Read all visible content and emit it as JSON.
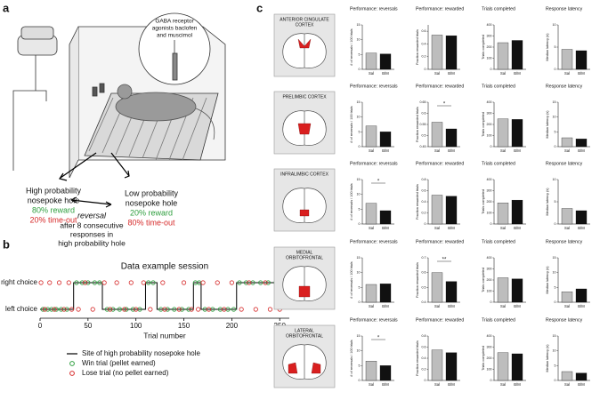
{
  "panel_a": {
    "letter": "a",
    "inset_label": [
      "GABA receptor",
      "agonists baclofen",
      "and muscimol"
    ],
    "high": {
      "label": [
        "High probability",
        "nosepoke hole"
      ],
      "reward": "80% reward",
      "timeout": "20% time-out"
    },
    "low": {
      "label": [
        "Low probability",
        "nosepoke hole"
      ],
      "reward": "20% reward",
      "timeout": "80% time-out"
    },
    "reversal": "reversal",
    "reversal_note": [
      "after 8 consecutive",
      "responses in",
      "high probability hole"
    ]
  },
  "panel_b": {
    "letter": "b",
    "type": "session",
    "title": "Data example session",
    "xlabel": "Trial number",
    "sides": [
      "left choice",
      "right choice"
    ],
    "xlim": [
      0,
      260
    ],
    "xticks": [
      0,
      50,
      100,
      150,
      200,
      250
    ],
    "blocks": [
      {
        "start": 0,
        "end": 35,
        "side": 0
      },
      {
        "start": 35,
        "end": 65,
        "side": 1
      },
      {
        "start": 65,
        "end": 110,
        "side": 0
      },
      {
        "start": 110,
        "end": 122,
        "side": 1
      },
      {
        "start": 122,
        "end": 160,
        "side": 0
      },
      {
        "start": 160,
        "end": 168,
        "side": 1
      },
      {
        "start": 168,
        "end": 205,
        "side": 0
      },
      {
        "start": 205,
        "end": 255,
        "side": 1
      }
    ],
    "win": {
      "left": [
        3,
        8,
        12,
        17,
        22,
        28,
        70,
        76,
        83,
        90,
        97,
        104,
        126,
        133,
        140,
        148,
        155,
        172,
        180,
        188,
        196,
        202
      ],
      "right": [
        38,
        44,
        50,
        57,
        62,
        113,
        118,
        162,
        166,
        208,
        215,
        222,
        230,
        238,
        246,
        252
      ]
    },
    "lose": {
      "left": [
        5,
        15,
        25,
        33,
        40,
        55,
        73,
        88,
        100,
        115,
        130,
        145,
        158,
        165,
        176,
        192,
        210,
        225,
        240,
        250
      ],
      "right": [
        1,
        10,
        20,
        30,
        47,
        67,
        80,
        95,
        108,
        128,
        150,
        170,
        185,
        200,
        218,
        235,
        248
      ]
    },
    "legend": [
      {
        "name": "Site of high probability nosepoke hole",
        "color": "#000000",
        "kind": "line"
      },
      {
        "name": "Win trial (pellet earned)",
        "color": "#2e9e3e",
        "kind": "circle"
      },
      {
        "name": "Lose trial (no pellet earned)",
        "color": "#d62a2a",
        "kind": "circle"
      }
    ]
  },
  "panel_c": {
    "letter": "c",
    "bar_colors": [
      "#bdbdbd",
      "#111111"
    ],
    "regions": [
      {
        "name": [
          "ANTERIOR CINGULATE",
          "CORTEX"
        ],
        "charts": [
          {
            "type": "bar",
            "title": "Performance: reversals",
            "ylabel": "# of reversals / 100 trials",
            "categories": [
              "Sal",
              "B/M"
            ],
            "values": [
              5.5,
              5.2
            ],
            "ylim": [
              0,
              15
            ],
            "yticks": [
              0,
              5,
              10,
              15
            ]
          },
          {
            "type": "bar",
            "title": "Performance: rewarded",
            "ylabel": "Fraction rewarded trials",
            "categories": [
              "Sal",
              "B/M"
            ],
            "values": [
              0.54,
              0.53
            ],
            "ylim": [
              0,
              0.7
            ],
            "yticks": [
              0,
              0.2,
              0.4,
              0.6
            ]
          },
          {
            "type": "bar",
            "title": "Trials completed",
            "ylabel": "Trials completed",
            "categories": [
              "Sal",
              "B/M"
            ],
            "values": [
              240,
              260
            ],
            "ylim": [
              0,
              400
            ],
            "yticks": [
              0,
              100,
              200,
              300,
              400
            ]
          },
          {
            "type": "bar",
            "title": "Response latency",
            "ylabel": "Median latency (s)",
            "categories": [
              "Sal",
              "B/M"
            ],
            "values": [
              4.5,
              4.2
            ],
            "ylim": [
              0,
              10
            ],
            "yticks": [
              0,
              5,
              10
            ]
          }
        ]
      },
      {
        "name": [
          "PRELIMBIC CORTEX"
        ],
        "charts": [
          {
            "type": "bar",
            "title": "Performance: reversals",
            "ylabel": "# of reversals / 100 trials",
            "categories": [
              "Sal",
              "B/M"
            ],
            "values": [
              7,
              5
            ],
            "ylim": [
              0,
              15
            ],
            "yticks": [
              0,
              5,
              10,
              15
            ]
          },
          {
            "type": "bar",
            "title": "Performance: rewarded",
            "ylabel": "Fraction rewarded trials",
            "categories": [
              "Sal",
              "B/M"
            ],
            "values": [
              0.56,
              0.53
            ],
            "ylim": [
              0.45,
              0.65
            ],
            "yticks": [
              0.45,
              0.5,
              0.55,
              0.6,
              0.65
            ],
            "annotation": "*"
          },
          {
            "type": "bar",
            "title": "Trials completed",
            "ylabel": "Trials completed",
            "categories": [
              "Sal",
              "B/M"
            ],
            "values": [
              250,
              245
            ],
            "ylim": [
              0,
              400
            ],
            "yticks": [
              0,
              100,
              200,
              300,
              400
            ]
          },
          {
            "type": "bar",
            "title": "Response latency",
            "ylabel": "Median latency (s)",
            "categories": [
              "Sal",
              "B/M"
            ],
            "values": [
              3,
              2.6
            ],
            "ylim": [
              0,
              15
            ],
            "yticks": [
              0,
              5,
              10,
              15
            ]
          }
        ]
      },
      {
        "name": [
          "INFRALIMBIC CORTEX"
        ],
        "charts": [
          {
            "type": "bar",
            "title": "Performance: reversals",
            "ylabel": "# of reversals / 100 trials",
            "categories": [
              "Sal",
              "B/M"
            ],
            "values": [
              7,
              4.5
            ],
            "ylim": [
              0,
              15
            ],
            "yticks": [
              0,
              5,
              10,
              15
            ],
            "annotation": "*"
          },
          {
            "type": "bar",
            "title": "Performance: rewarded",
            "ylabel": "Fraction rewarded trials",
            "categories": [
              "Sal",
              "B/M"
            ],
            "values": [
              0.52,
              0.5
            ],
            "ylim": [
              0,
              0.8
            ],
            "yticks": [
              0,
              0.2,
              0.4,
              0.6,
              0.8
            ]
          },
          {
            "type": "bar",
            "title": "Trials completed",
            "ylabel": "Trials completed",
            "categories": [
              "Sal",
              "B/M"
            ],
            "values": [
              190,
              215
            ],
            "ylim": [
              0,
              400
            ],
            "yticks": [
              0,
              100,
              200,
              300,
              400
            ]
          },
          {
            "type": "bar",
            "title": "Response latency",
            "ylabel": "Median latency (s)",
            "categories": [
              "Sal",
              "B/M"
            ],
            "values": [
              3.5,
              3
            ],
            "ylim": [
              0,
              10
            ],
            "yticks": [
              0,
              5,
              10
            ]
          }
        ]
      },
      {
        "name": [
          "MEDIAL",
          "ORBITOFRONTAL"
        ],
        "charts": [
          {
            "type": "bar",
            "title": "Performance: reversals",
            "ylabel": "# of reversals / 100 trials",
            "categories": [
              "Sal",
              "B/M"
            ],
            "values": [
              6,
              6.2
            ],
            "ylim": [
              0,
              15
            ],
            "yticks": [
              0,
              5,
              10,
              15
            ]
          },
          {
            "type": "bar",
            "title": "Performance: rewarded",
            "ylabel": "Fraction rewarded trials",
            "categories": [
              "Sal",
              "B/M"
            ],
            "values": [
              0.6,
              0.54
            ],
            "ylim": [
              0.4,
              0.7
            ],
            "yticks": [
              0.4,
              0.5,
              0.6,
              0.7
            ],
            "annotation": "**"
          },
          {
            "type": "bar",
            "title": "Trials completed",
            "ylabel": "Trials completed",
            "categories": [
              "Sal",
              "B/M"
            ],
            "values": [
              220,
              210
            ],
            "ylim": [
              0,
              400
            ],
            "yticks": [
              0,
              100,
              200,
              300,
              400
            ]
          },
          {
            "type": "bar",
            "title": "Response latency",
            "ylabel": "Median latency (s)",
            "categories": [
              "Sal",
              "B/M"
            ],
            "values": [
              3.5,
              4.5
            ],
            "ylim": [
              0,
              15
            ],
            "yticks": [
              0,
              5,
              10,
              15
            ]
          }
        ]
      },
      {
        "name": [
          "LATERAL",
          "ORBITOFRONTAL"
        ],
        "charts": [
          {
            "type": "bar",
            "title": "Performance: reversals",
            "ylabel": "# of reversals / 100 trials",
            "categories": [
              "Sal",
              "B/M"
            ],
            "values": [
              6.5,
              5
            ],
            "ylim": [
              0,
              15
            ],
            "yticks": [
              0,
              5,
              10,
              15
            ],
            "annotation": "*"
          },
          {
            "type": "bar",
            "title": "Performance: rewarded",
            "ylabel": "Fraction rewarded trials",
            "categories": [
              "Sal",
              "B/M"
            ],
            "values": [
              0.55,
              0.5
            ],
            "ylim": [
              0,
              0.8
            ],
            "yticks": [
              0,
              0.2,
              0.4,
              0.6,
              0.8
            ]
          },
          {
            "type": "bar",
            "title": "Trials completed",
            "ylabel": "Trials completed",
            "categories": [
              "Sal",
              "B/M"
            ],
            "values": [
              250,
              240
            ],
            "ylim": [
              0,
              400
            ],
            "yticks": [
              0,
              100,
              200,
              300,
              400
            ]
          },
          {
            "type": "bar",
            "title": "Response latency",
            "ylabel": "Median latency (s)",
            "categories": [
              "Sal",
              "B/M"
            ],
            "values": [
              3,
              2.5
            ],
            "ylim": [
              0,
              15
            ],
            "yticks": [
              0,
              5,
              10,
              15
            ]
          }
        ]
      }
    ]
  }
}
